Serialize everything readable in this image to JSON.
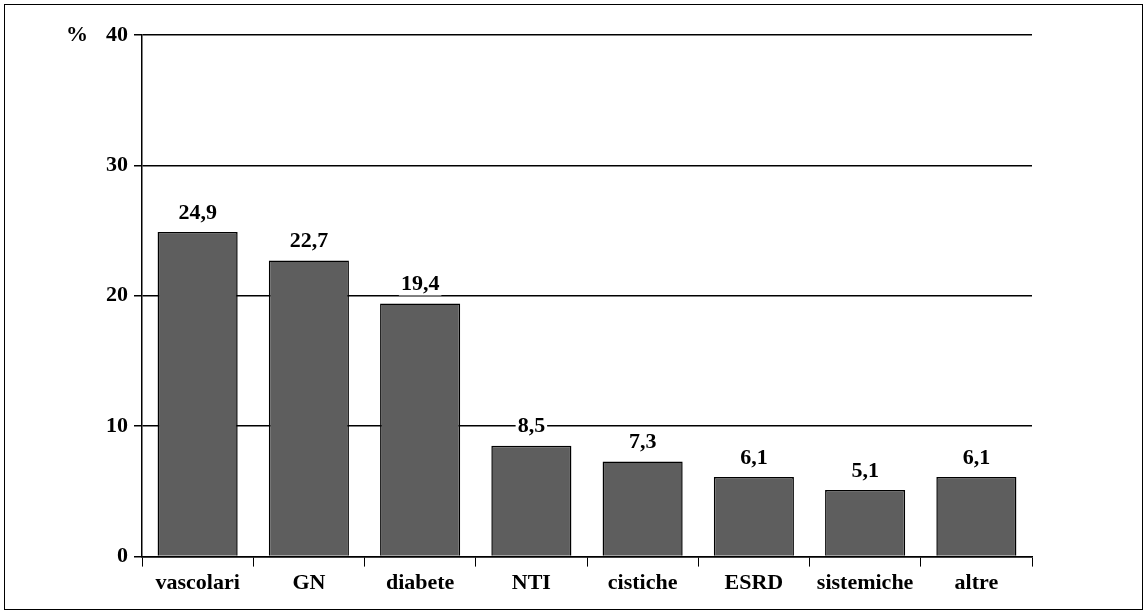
{
  "chart_data": {
    "type": "bar",
    "ylabel": "%",
    "categories": [
      "vascolari",
      "GN",
      "diabete",
      "NTI",
      "cistiche",
      "ESRD",
      "sistemiche",
      "altre"
    ],
    "values": [
      24.9,
      22.7,
      19.4,
      8.5,
      7.3,
      6.1,
      5.1,
      6.1
    ],
    "value_labels": [
      "24,9",
      "22,7",
      "19,4",
      "8,5",
      "7,3",
      "6,1",
      "5,1",
      "6,1"
    ],
    "color": "#5e5e5e",
    "ylim": [
      0,
      40
    ],
    "yticks": [
      0,
      10,
      20,
      30,
      40
    ],
    "grid": "y",
    "legend": false
  }
}
